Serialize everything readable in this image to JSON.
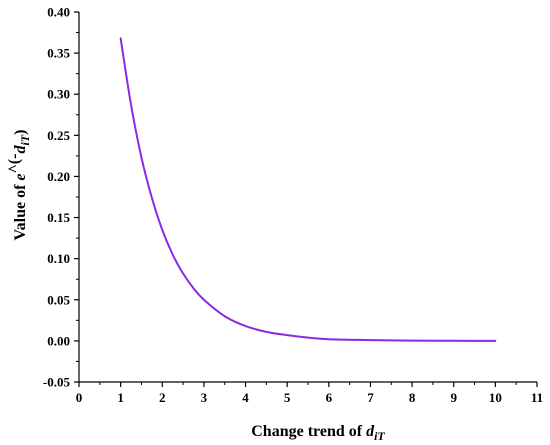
{
  "chart_data": {
    "type": "line",
    "title": "",
    "xlabel": {
      "prefix": "Change trend of ",
      "var": "d",
      "sub": "iT",
      "suffix": ""
    },
    "ylabel": {
      "prefix": "Value of ",
      "var": "e",
      "mid": "^(-",
      "var2": "d",
      "sub": "iT",
      "suffix": ")"
    },
    "xlim": [
      0,
      11
    ],
    "ylim": [
      -0.05,
      0.4
    ],
    "xticks": [
      0,
      1,
      2,
      3,
      4,
      5,
      6,
      7,
      8,
      9,
      10,
      11
    ],
    "yticks": [
      -0.05,
      0.0,
      0.05,
      0.1,
      0.15,
      0.2,
      0.25,
      0.3,
      0.35,
      0.4
    ],
    "ytick_labels": [
      "-0.05",
      "0.00",
      "0.05",
      "0.10",
      "0.15",
      "0.20",
      "0.25",
      "0.30",
      "0.35",
      "0.40"
    ],
    "grid": false,
    "series": [
      {
        "color": "#8a2be2",
        "x": [
          1.0,
          1.25,
          1.5,
          1.75,
          2.0,
          2.25,
          2.5,
          2.75,
          3.0,
          3.5,
          4.0,
          4.5,
          5.0,
          5.5,
          6.0,
          7.0,
          8.0,
          9.0,
          10.0
        ],
        "y": [
          0.368,
          0.287,
          0.223,
          0.174,
          0.135,
          0.105,
          0.082,
          0.064,
          0.05,
          0.03,
          0.018,
          0.011,
          0.007,
          0.004,
          0.002,
          0.001,
          0.0003,
          0.0001,
          0.0
        ]
      }
    ]
  }
}
